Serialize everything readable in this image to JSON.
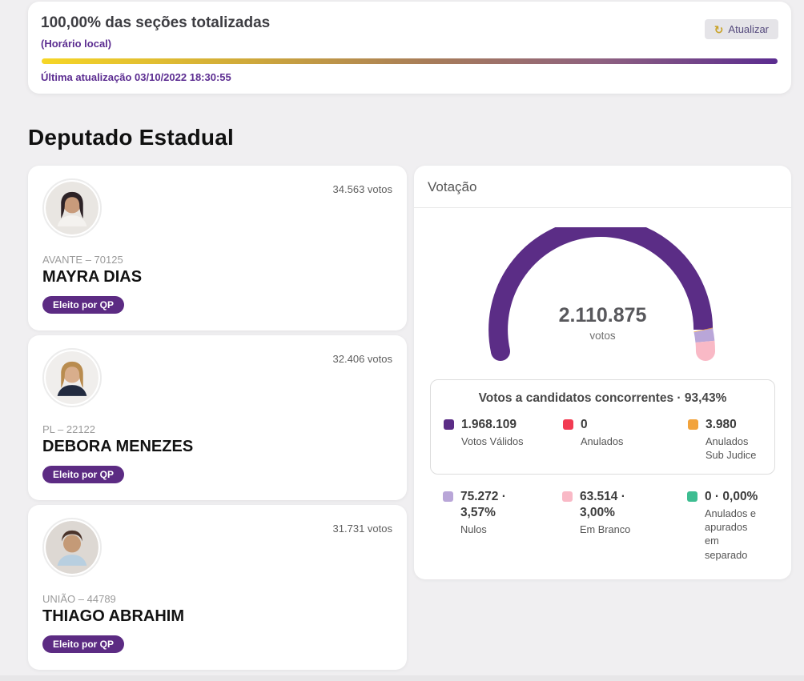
{
  "header": {
    "title": "100,00% das seções totalizadas",
    "subtitle": "(Horário local)",
    "last_update": "Última atualização 03/10/2022 18:30:55",
    "refresh_label": "Atualizar",
    "progress_percent": "100,00%",
    "progress_colors": [
      "#f6d626",
      "#5b2c90"
    ]
  },
  "section_title": "Deputado Estadual",
  "candidates": [
    {
      "name": "MAYRA DIAS",
      "party": "AVANTE – 70125",
      "votes": "34.563 votos",
      "badge": "Eleito por QP",
      "avatar": {
        "bg": "#e9e6e2",
        "hair": "#2c2226",
        "skin": "#c89b7b",
        "shirt": "#f4f2ef"
      }
    },
    {
      "name": "DEBORA MENEZES",
      "party": "PL – 22122",
      "votes": "32.406 votos",
      "badge": "Eleito por QP",
      "avatar": {
        "bg": "#f0eeec",
        "hair": "#b98c4f",
        "skin": "#d9ae8c",
        "shirt": "#232b40"
      }
    },
    {
      "name": "THIAGO ABRAHIM",
      "party": "UNIÃO – 44789",
      "votes": "31.731 votos",
      "badge": "Eleito por QP",
      "avatar": {
        "bg": "#ddd8d3",
        "hair": "#4a332a",
        "skin": "#c49a77",
        "shirt": "#b8cfe0"
      }
    }
  ],
  "votacao": {
    "panel_title": "Votação",
    "box_title": "Votos a candidatos concorrentes · 93,43%"
  },
  "chart_data": {
    "type": "gauge",
    "title": "Votação",
    "total": 2110875,
    "center_label": "2.110.875",
    "center_sublabel": "votos",
    "segments": [
      {
        "label": "Votos Válidos",
        "value": 1968109,
        "display": "1.968.109",
        "color": "#5b2d86"
      },
      {
        "label": "Anulados",
        "value": 0,
        "display": "0",
        "color": "#f23b52"
      },
      {
        "label": "Anulados Sub Judice",
        "value": 3980,
        "display": "3.980",
        "color": "#f2a33c"
      },
      {
        "label": "Nulos",
        "value": 75272,
        "display": "75.272 · 3,57%",
        "color": "#b9a6d8"
      },
      {
        "label": "Em Branco",
        "value": 63514,
        "display": "63.514 · 3,00%",
        "color": "#f9b9c6"
      },
      {
        "label": "Anulados e apurados em separado",
        "value": 0,
        "display": "0 · 0,00%",
        "color": "#3dbd91"
      }
    ]
  }
}
